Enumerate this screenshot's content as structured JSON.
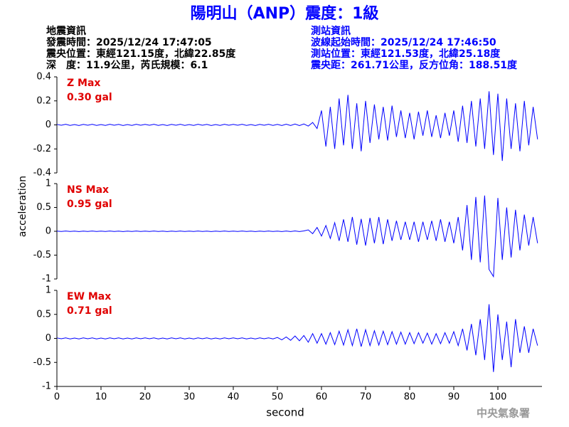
{
  "header": {
    "title": "陽明山（ANP）震度：1級",
    "left": [
      "地震資訊",
      "發震時間：2025/12/24 17:47:05",
      "震央位置：東經121.15度，北緯22.85度",
      "深　度：11.9公里，芮氏規模：6.1"
    ],
    "right": [
      "測站資訊",
      "波線起始時間：2025/12/24 17:46:50",
      "測站位置：東經121.53度，北緯25.18度",
      "震央距：261.71公里，反方位角：188.51度"
    ],
    "ylabel": "acceleration",
    "footer": "中央氣象署"
  },
  "chart_data": [
    {
      "type": "line",
      "max_label": "Z Max",
      "max_text": "0.30 gal",
      "color": "#0000ff",
      "xlim": [
        0,
        110
      ],
      "ylim": [
        -0.4,
        0.4
      ],
      "yticks": [
        -0.4,
        -0.2,
        0,
        0.2,
        0.4
      ],
      "x": [
        0,
        1,
        2,
        3,
        4,
        5,
        6,
        7,
        8,
        9,
        10,
        11,
        12,
        13,
        14,
        15,
        16,
        17,
        18,
        19,
        20,
        21,
        22,
        23,
        24,
        25,
        26,
        27,
        28,
        29,
        30,
        31,
        32,
        33,
        34,
        35,
        36,
        37,
        38,
        39,
        40,
        41,
        42,
        43,
        44,
        45,
        46,
        47,
        48,
        49,
        50,
        51,
        52,
        53,
        54,
        55,
        56,
        57,
        58,
        59,
        60,
        61,
        62,
        63,
        64,
        65,
        66,
        67,
        68,
        69,
        70,
        71,
        72,
        73,
        74,
        75,
        76,
        77,
        78,
        79,
        80,
        81,
        82,
        83,
        84,
        85,
        86,
        87,
        88,
        89,
        90,
        91,
        92,
        93,
        94,
        95,
        96,
        97,
        98,
        99,
        100,
        101,
        102,
        103,
        104,
        105,
        106,
        107,
        108,
        109
      ],
      "values": [
        0.004,
        -0.003,
        0.005,
        -0.004,
        0.003,
        -0.005,
        0.004,
        -0.003,
        0.005,
        -0.004,
        0.003,
        -0.004,
        0.005,
        -0.003,
        0.004,
        -0.005,
        0.003,
        -0.004,
        0.005,
        -0.003,
        0.004,
        -0.003,
        0.005,
        -0.004,
        0.003,
        -0.005,
        0.004,
        -0.003,
        0.005,
        -0.004,
        0.003,
        -0.004,
        0.005,
        -0.003,
        0.004,
        -0.005,
        0.003,
        -0.004,
        0.005,
        -0.003,
        0.004,
        -0.003,
        0.005,
        -0.004,
        0.003,
        -0.005,
        0.004,
        -0.003,
        0.005,
        -0.004,
        0.004,
        -0.005,
        0.006,
        -0.005,
        0.007,
        -0.006,
        0.008,
        -0.01,
        0.02,
        -0.03,
        0.12,
        -0.18,
        0.15,
        -0.2,
        0.22,
        -0.17,
        0.25,
        -0.2,
        0.18,
        -0.22,
        0.2,
        -0.15,
        0.17,
        -0.12,
        0.15,
        -0.13,
        0.16,
        -0.1,
        0.12,
        -0.11,
        0.1,
        -0.12,
        0.11,
        -0.09,
        0.12,
        -0.1,
        0.08,
        -0.11,
        0.1,
        -0.09,
        0.12,
        -0.14,
        0.16,
        -0.15,
        0.2,
        -0.18,
        0.22,
        -0.2,
        0.28,
        -0.25,
        0.26,
        -0.3,
        0.22,
        -0.2,
        0.18,
        -0.22,
        0.2,
        -0.17,
        0.15,
        -0.12
      ]
    },
    {
      "type": "line",
      "max_label": "NS Max",
      "max_text": "0.95 gal",
      "color": "#0000ff",
      "xlim": [
        0,
        110
      ],
      "ylim": [
        -1,
        1
      ],
      "yticks": [
        -1,
        -0.5,
        0,
        0.5,
        1
      ],
      "x": [
        0,
        1,
        2,
        3,
        4,
        5,
        6,
        7,
        8,
        9,
        10,
        11,
        12,
        13,
        14,
        15,
        16,
        17,
        18,
        19,
        20,
        21,
        22,
        23,
        24,
        25,
        26,
        27,
        28,
        29,
        30,
        31,
        32,
        33,
        34,
        35,
        36,
        37,
        38,
        39,
        40,
        41,
        42,
        43,
        44,
        45,
        46,
        47,
        48,
        49,
        50,
        51,
        52,
        53,
        54,
        55,
        56,
        57,
        58,
        59,
        60,
        61,
        62,
        63,
        64,
        65,
        66,
        67,
        68,
        69,
        70,
        71,
        72,
        73,
        74,
        75,
        76,
        77,
        78,
        79,
        80,
        81,
        82,
        83,
        84,
        85,
        86,
        87,
        88,
        89,
        90,
        91,
        92,
        93,
        94,
        95,
        96,
        97,
        98,
        99,
        100,
        101,
        102,
        103,
        104,
        105,
        106,
        107,
        108,
        109
      ],
      "values": [
        0.004,
        -0.003,
        0.005,
        -0.004,
        0.003,
        -0.005,
        0.004,
        -0.003,
        0.005,
        -0.004,
        0.003,
        -0.004,
        0.005,
        -0.003,
        0.004,
        -0.005,
        0.003,
        -0.004,
        0.005,
        -0.003,
        0.004,
        -0.003,
        0.005,
        -0.004,
        0.003,
        -0.005,
        0.004,
        -0.003,
        0.005,
        -0.004,
        0.003,
        -0.004,
        0.005,
        -0.003,
        0.004,
        -0.005,
        0.003,
        -0.004,
        0.005,
        -0.003,
        0.004,
        -0.003,
        0.005,
        -0.004,
        0.003,
        -0.005,
        0.004,
        -0.003,
        0.005,
        -0.004,
        0.004,
        -0.005,
        0.006,
        -0.005,
        0.007,
        -0.006,
        0.008,
        0.03,
        -0.05,
        0.08,
        -0.1,
        0.12,
        -0.15,
        0.18,
        -0.2,
        0.25,
        -0.22,
        0.3,
        -0.28,
        0.26,
        -0.3,
        0.28,
        -0.25,
        0.3,
        -0.27,
        0.25,
        -0.2,
        0.22,
        -0.18,
        0.2,
        -0.18,
        0.2,
        -0.22,
        0.2,
        -0.18,
        0.22,
        -0.2,
        0.25,
        -0.22,
        0.2,
        -0.25,
        0.3,
        -0.4,
        0.55,
        -0.6,
        0.72,
        -0.65,
        0.75,
        -0.8,
        -0.95,
        0.7,
        -0.6,
        0.5,
        -0.55,
        0.45,
        -0.4,
        0.35,
        -0.3,
        0.3,
        -0.25
      ]
    },
    {
      "type": "line",
      "max_label": "EW Max",
      "max_text": "0.71 gal",
      "color": "#0000ff",
      "xlim": [
        0,
        110
      ],
      "ylim": [
        -1,
        1
      ],
      "yticks": [
        -1,
        -0.5,
        0,
        0.5,
        1
      ],
      "xticks": [
        0,
        10,
        20,
        30,
        40,
        50,
        60,
        70,
        80,
        90,
        100
      ],
      "xlabel": "second",
      "x": [
        0,
        1,
        2,
        3,
        4,
        5,
        6,
        7,
        8,
        9,
        10,
        11,
        12,
        13,
        14,
        15,
        16,
        17,
        18,
        19,
        20,
        21,
        22,
        23,
        24,
        25,
        26,
        27,
        28,
        29,
        30,
        31,
        32,
        33,
        34,
        35,
        36,
        37,
        38,
        39,
        40,
        41,
        42,
        43,
        44,
        45,
        46,
        47,
        48,
        49,
        50,
        51,
        52,
        53,
        54,
        55,
        56,
        57,
        58,
        59,
        60,
        61,
        62,
        63,
        64,
        65,
        66,
        67,
        68,
        69,
        70,
        71,
        72,
        73,
        74,
        75,
        76,
        77,
        78,
        79,
        80,
        81,
        82,
        83,
        84,
        85,
        86,
        87,
        88,
        89,
        90,
        91,
        92,
        93,
        94,
        95,
        96,
        97,
        98,
        99,
        100,
        101,
        102,
        103,
        104,
        105,
        106,
        107,
        108,
        109
      ],
      "values": [
        0.01,
        -0.008,
        0.01,
        -0.01,
        0.008,
        -0.01,
        0.01,
        -0.008,
        0.01,
        -0.01,
        0.008,
        -0.01,
        0.01,
        -0.008,
        0.01,
        -0.01,
        0.008,
        -0.01,
        0.01,
        -0.008,
        0.01,
        -0.008,
        0.01,
        -0.01,
        0.008,
        -0.01,
        0.01,
        -0.008,
        0.01,
        -0.01,
        0.008,
        -0.01,
        0.01,
        -0.008,
        0.01,
        -0.01,
        0.008,
        -0.01,
        0.01,
        -0.008,
        0.01,
        -0.008,
        0.01,
        -0.01,
        0.008,
        -0.01,
        0.01,
        -0.008,
        0.01,
        -0.01,
        0.02,
        -0.03,
        0.03,
        -0.04,
        0.05,
        -0.05,
        0.06,
        -0.08,
        0.1,
        -0.1,
        0.1,
        -0.12,
        0.12,
        -0.13,
        0.15,
        -0.14,
        0.18,
        -0.15,
        0.2,
        -0.17,
        0.18,
        -0.15,
        0.16,
        -0.14,
        0.15,
        -0.13,
        0.14,
        -0.12,
        0.13,
        -0.12,
        0.12,
        -0.11,
        0.12,
        -0.1,
        0.11,
        -0.12,
        0.1,
        -0.11,
        0.12,
        -0.1,
        0.14,
        -0.15,
        0.2,
        -0.25,
        0.3,
        -0.35,
        0.4,
        -0.45,
        0.71,
        -0.7,
        0.5,
        -0.45,
        0.35,
        -0.6,
        0.4,
        -0.3,
        0.25,
        -0.3,
        0.2,
        -0.15
      ]
    }
  ]
}
